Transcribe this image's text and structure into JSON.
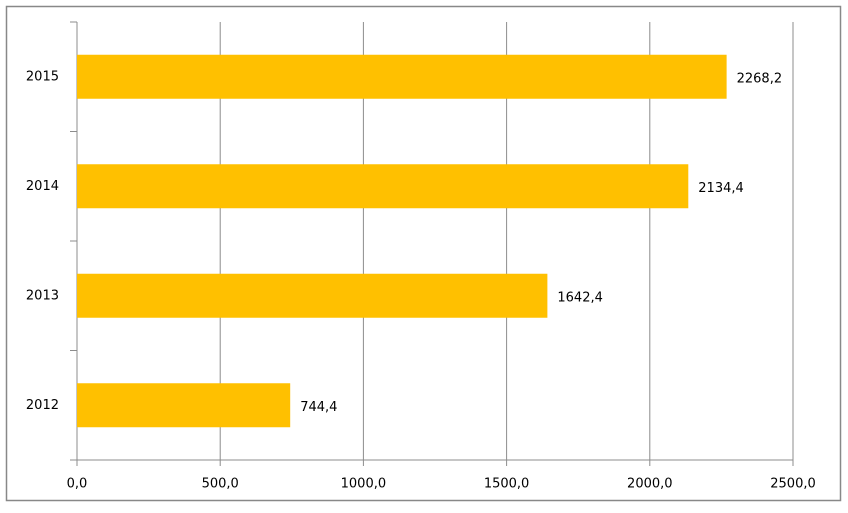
{
  "chart_data": {
    "type": "bar",
    "orientation": "horizontal",
    "categories": [
      "2012",
      "2013",
      "2014",
      "2015"
    ],
    "values": [
      744.4,
      1642.4,
      2134.4,
      2268.2
    ],
    "value_labels": [
      "744,4",
      "1642,4",
      "2134,4",
      "2268,2"
    ],
    "color": "#ffc000",
    "xlim": [
      0,
      2500
    ],
    "xticks": [
      {
        "value": 0,
        "label": "0,0"
      },
      {
        "value": 500,
        "label": "500,0"
      },
      {
        "value": 1000,
        "label": "1000,0"
      },
      {
        "value": 1500,
        "label": "1500,0"
      },
      {
        "value": 2000,
        "label": "2000,0"
      },
      {
        "value": 2500,
        "label": "2500,0"
      }
    ],
    "grid": true
  }
}
